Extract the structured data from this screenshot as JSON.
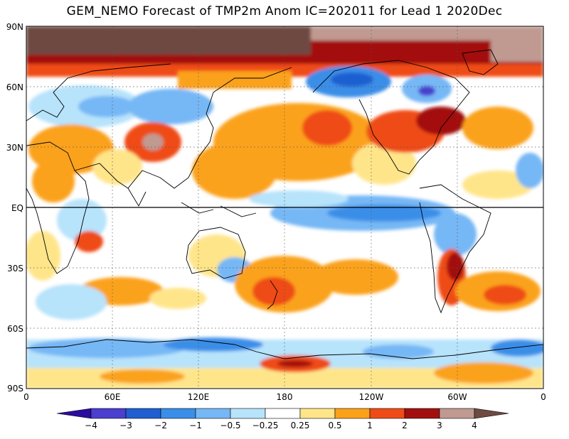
{
  "title": "GEM_NEMO Forecast of TMP2m Anom IC=202011 for Lead 1 2020Dec",
  "map": {
    "lat_ticks": [
      "90N",
      "60N",
      "30N",
      "EQ",
      "30S",
      "60S",
      "90S"
    ],
    "lon_ticks": [
      "0",
      "60E",
      "120E",
      "180",
      "120W",
      "60W",
      "0"
    ],
    "lat_range": [
      -90,
      90
    ],
    "lon_range": [
      0,
      360
    ]
  },
  "colorbar": {
    "labels": [
      "−4",
      "−3",
      "−2",
      "−1",
      "−0.5",
      "−0.25",
      "0.25",
      "0.5",
      "1",
      "2",
      "3",
      "4"
    ],
    "colors": [
      "#2b0c9e",
      "#4a3fcf",
      "#1f5fd1",
      "#3a8ee8",
      "#76b7f5",
      "#b7e3fb",
      "#ffffff",
      "#ffe58a",
      "#fba21b",
      "#ef4b18",
      "#a30f0f",
      "#c09a90",
      "#6e4a42"
    ]
  },
  "colors": {
    "warm_light": "#ffe58a",
    "warm_med": "#fba21b",
    "warm_strong": "#ef4b18",
    "warm_deep": "#a30f0f",
    "warm_extreme": "#c09a90",
    "warm_max": "#6e4a42",
    "cool_light": "#b7e3fb",
    "cool_med": "#76b7f5",
    "cool_strong": "#3a8ee8",
    "cool_deep": "#1f5fd1"
  }
}
